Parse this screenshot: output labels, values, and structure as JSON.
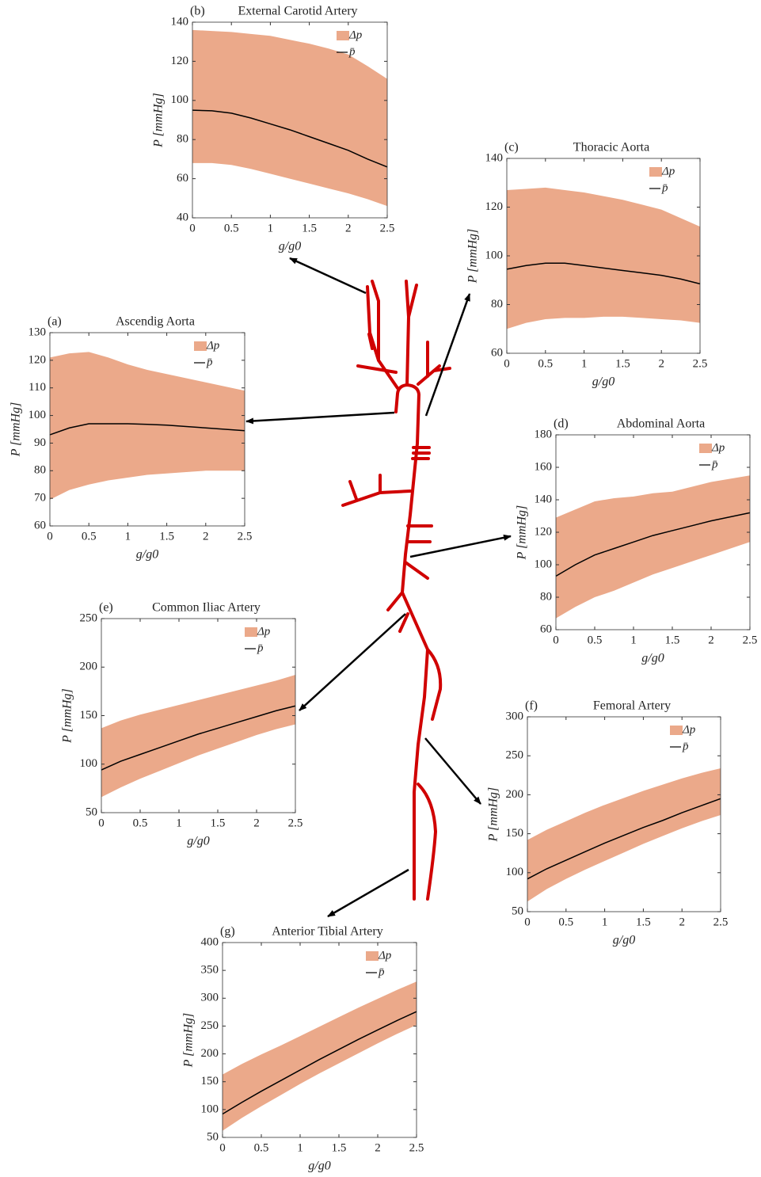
{
  "chart_data": [
    {
      "type": "band",
      "label": "(b)",
      "title": "External Carotid Artery",
      "xlabel": "g/g0",
      "ylabel": "P [mmHg]",
      "x": [
        0,
        0.25,
        0.5,
        0.75,
        1,
        1.25,
        1.5,
        1.75,
        2,
        2.25,
        2.5
      ],
      "series": [
        {
          "name": "Δp",
          "color": "#eba98a",
          "upper": [
            136,
            135.5,
            135,
            134,
            133,
            131,
            129,
            126.5,
            123.5,
            117.5,
            111
          ],
          "lower": [
            68,
            68,
            67,
            65,
            62.5,
            60,
            57.5,
            55,
            52.5,
            49.5,
            46
          ]
        },
        {
          "name": "p̄",
          "color": "#000000",
          "values": [
            95,
            94.7,
            93.5,
            91,
            88,
            85,
            81.5,
            78,
            74.5,
            70,
            66
          ]
        }
      ],
      "xlim": [
        0,
        2.5
      ],
      "ylim": [
        40,
        140
      ],
      "xticks": [
        0,
        0.5,
        1,
        1.5,
        2,
        2.5
      ],
      "yticks": [
        40,
        60,
        80,
        100,
        120,
        140
      ]
    },
    {
      "type": "band",
      "label": "(c)",
      "title": "Thoracic Aorta",
      "xlabel": "g/g0",
      "ylabel": "P [mmHg]",
      "x": [
        0,
        0.25,
        0.5,
        0.75,
        1,
        1.25,
        1.5,
        1.75,
        2,
        2.25,
        2.5
      ],
      "series": [
        {
          "name": "Δp",
          "color": "#eba98a",
          "upper": [
            127,
            127.5,
            128,
            127,
            126,
            124.5,
            123,
            121,
            119,
            115.5,
            112
          ],
          "lower": [
            70,
            72.5,
            74,
            74.5,
            74.5,
            75,
            75,
            74.5,
            74,
            73.5,
            72.5
          ]
        },
        {
          "name": "p̄",
          "color": "#000000",
          "values": [
            94.5,
            96,
            97,
            97,
            96,
            95,
            94,
            93,
            92,
            90.5,
            88.5
          ]
        }
      ],
      "xlim": [
        0,
        2.5
      ],
      "ylim": [
        60,
        140
      ],
      "xticks": [
        0,
        0.5,
        1,
        1.5,
        2,
        2.5
      ],
      "yticks": [
        60,
        80,
        100,
        120,
        140
      ]
    },
    {
      "type": "band",
      "label": "(a)",
      "title": "Ascendig Aorta",
      "xlabel": "g/g0",
      "ylabel": "P [mmHg]",
      "x": [
        0,
        0.25,
        0.5,
        0.75,
        1,
        1.25,
        1.5,
        1.75,
        2,
        2.25,
        2.5
      ],
      "series": [
        {
          "name": "Δp",
          "color": "#eba98a",
          "upper": [
            121,
            122.5,
            123,
            121,
            118.5,
            116.5,
            115,
            113.5,
            112,
            110.5,
            109
          ],
          "lower": [
            69.5,
            73,
            75,
            76.5,
            77.5,
            78.5,
            79,
            79.5,
            80,
            80,
            80
          ]
        },
        {
          "name": "p̄",
          "color": "#000000",
          "values": [
            93,
            95.5,
            97,
            97,
            97,
            96.8,
            96.5,
            96,
            95.5,
            95,
            94.5
          ]
        }
      ],
      "xlim": [
        0,
        2.5
      ],
      "ylim": [
        60,
        130
      ],
      "xticks": [
        0,
        0.5,
        1,
        1.5,
        2,
        2.5
      ],
      "yticks": [
        60,
        70,
        80,
        90,
        100,
        110,
        120,
        130
      ]
    },
    {
      "type": "band",
      "label": "(d)",
      "title": "Abdominal Aorta",
      "xlabel": "g/g0",
      "ylabel": "P [mmHg]",
      "x": [
        0,
        0.25,
        0.5,
        0.75,
        1,
        1.25,
        1.5,
        1.75,
        2,
        2.25,
        2.5
      ],
      "series": [
        {
          "name": "Δp",
          "color": "#eba98a",
          "upper": [
            129,
            134,
            139,
            141,
            142,
            144,
            145,
            148,
            151,
            153,
            155
          ],
          "lower": [
            67,
            74,
            80,
            84,
            89,
            94,
            98,
            102,
            106,
            110,
            114
          ]
        },
        {
          "name": "p̄",
          "color": "#000000",
          "values": [
            93,
            100,
            106,
            110,
            114,
            118,
            121,
            124,
            127,
            129.5,
            132
          ]
        }
      ],
      "xlim": [
        0,
        2.5
      ],
      "ylim": [
        60,
        180
      ],
      "xticks": [
        0,
        0.5,
        1,
        1.5,
        2,
        2.5
      ],
      "yticks": [
        60,
        80,
        100,
        120,
        140,
        160,
        180
      ]
    },
    {
      "type": "band",
      "label": "(e)",
      "title": "Common Iliac Artery",
      "xlabel": "g/g0",
      "ylabel": "P [mmHg]",
      "x": [
        0,
        0.25,
        0.5,
        0.75,
        1,
        1.25,
        1.5,
        1.75,
        2,
        2.25,
        2.5
      ],
      "series": [
        {
          "name": "Δp",
          "color": "#eba98a",
          "upper": [
            137,
            145,
            151,
            156,
            161,
            166,
            171,
            176,
            181,
            186,
            192
          ],
          "lower": [
            66,
            76,
            85,
            93,
            101,
            109,
            116,
            123,
            130,
            136,
            141
          ]
        },
        {
          "name": "p̄",
          "color": "#000000",
          "values": [
            94,
            103,
            110,
            117,
            124,
            131,
            137,
            143,
            149,
            155,
            160
          ]
        }
      ],
      "xlim": [
        0,
        2.5
      ],
      "ylim": [
        50,
        250
      ],
      "xticks": [
        0,
        0.5,
        1,
        1.5,
        2,
        2.5
      ],
      "yticks": [
        50,
        100,
        150,
        200,
        250
      ]
    },
    {
      "type": "band",
      "label": "(f)",
      "title": "Femoral Artery",
      "xlabel": "g/g0",
      "ylabel": "P [mmHg]",
      "x": [
        0,
        0.25,
        0.5,
        0.75,
        1,
        1.25,
        1.5,
        1.75,
        2,
        2.25,
        2.5
      ],
      "series": [
        {
          "name": "Δp",
          "color": "#eba98a",
          "upper": [
            142,
            155,
            166,
            177,
            187,
            196,
            205,
            213,
            221,
            228,
            234
          ],
          "lower": [
            63,
            79,
            92,
            104,
            115,
            126,
            137,
            147,
            157,
            166,
            174
          ]
        },
        {
          "name": "p̄",
          "color": "#000000",
          "values": [
            92,
            105,
            116,
            127,
            138,
            148,
            158,
            167,
            177,
            186,
            195
          ]
        }
      ],
      "xlim": [
        0,
        2.5
      ],
      "ylim": [
        50,
        300
      ],
      "xticks": [
        0,
        0.5,
        1,
        1.5,
        2,
        2.5
      ],
      "yticks": [
        50,
        100,
        150,
        200,
        250,
        300
      ]
    },
    {
      "type": "band",
      "label": "(g)",
      "title": "Anterior Tibial Artery",
      "xlabel": "g/g0",
      "ylabel": "P [mmHg]",
      "x": [
        0,
        0.25,
        0.5,
        0.75,
        1,
        1.25,
        1.5,
        1.75,
        2,
        2.25,
        2.5
      ],
      "series": [
        {
          "name": "Δp",
          "color": "#eba98a",
          "upper": [
            163,
            182,
            199,
            215,
            232,
            249,
            266,
            283,
            299,
            315,
            330
          ],
          "lower": [
            62,
            85,
            106,
            126,
            146,
            165,
            183,
            201,
            219,
            236,
            252
          ]
        },
        {
          "name": "p̄",
          "color": "#000000",
          "values": [
            92,
            113,
            133,
            152,
            171,
            190,
            208,
            226,
            243,
            260,
            276
          ]
        }
      ],
      "xlim": [
        0,
        2.5
      ],
      "ylim": [
        50,
        400
      ],
      "xticks": [
        0,
        0.5,
        1,
        1.5,
        2,
        2.5
      ],
      "yticks": [
        50,
        100,
        150,
        200,
        250,
        300,
        350,
        400
      ]
    }
  ]
}
